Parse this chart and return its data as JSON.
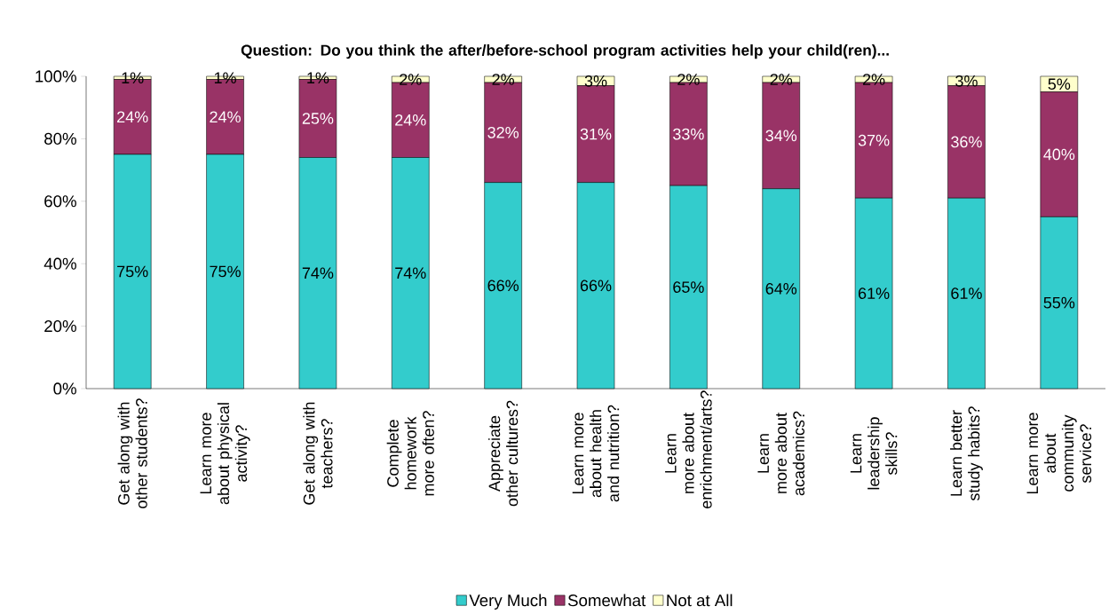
{
  "chart_data": {
    "type": "bar",
    "stacked": true,
    "title": "Question: Do you think the after/before-school program activities help your child(ren)...",
    "categories": [
      "Get along with other students?",
      "Learn more about physical activity?",
      "Get along with teachers?",
      "Complete homework more often?",
      "Appreciate other cultures?",
      "Learn more about health and nutrition?",
      "Learn more about enrichment/arts?",
      "Learn more about academics?",
      "Learn leadership skills?",
      "Learn better study habits?",
      "Learn more about community service?"
    ],
    "series": [
      {
        "name": "Very Much",
        "color": "#33cccc",
        "values": [
          75,
          75,
          74,
          74,
          66,
          66,
          65,
          64,
          61,
          61,
          55
        ],
        "value_labels": [
          "75%",
          "75%",
          "74%",
          "74%",
          "66%",
          "66%",
          "65%",
          "64%",
          "61%",
          "61%",
          "55%"
        ]
      },
      {
        "name": "Somewhat",
        "color": "#993366",
        "values": [
          24,
          24,
          25,
          24,
          32,
          31,
          33,
          34,
          37,
          36,
          40
        ],
        "value_labels": [
          "24%",
          "24%",
          "25%",
          "24%",
          "32%",
          "31%",
          "33%",
          "34%",
          "37%",
          "36%",
          "40%"
        ]
      },
      {
        "name": "Not at All",
        "color": "#ffffcc",
        "values": [
          1,
          1,
          1,
          2,
          2,
          3,
          2,
          2,
          2,
          3,
          5
        ],
        "value_labels": [
          "1%",
          "1%",
          "1%",
          "2%",
          "2%",
          "3%",
          "2%",
          "2%",
          "2%",
          "3%",
          "5%"
        ]
      }
    ],
    "ylim": [
      0,
      100
    ],
    "yticks": [
      {
        "value": 0,
        "label": "0%"
      },
      {
        "value": 20,
        "label": "20%"
      },
      {
        "value": 40,
        "label": "40%"
      },
      {
        "value": 60,
        "label": "60%"
      },
      {
        "value": 80,
        "label": "80%"
      },
      {
        "value": 100,
        "label": "100%"
      }
    ],
    "legend": "bottom",
    "grid": false
  }
}
